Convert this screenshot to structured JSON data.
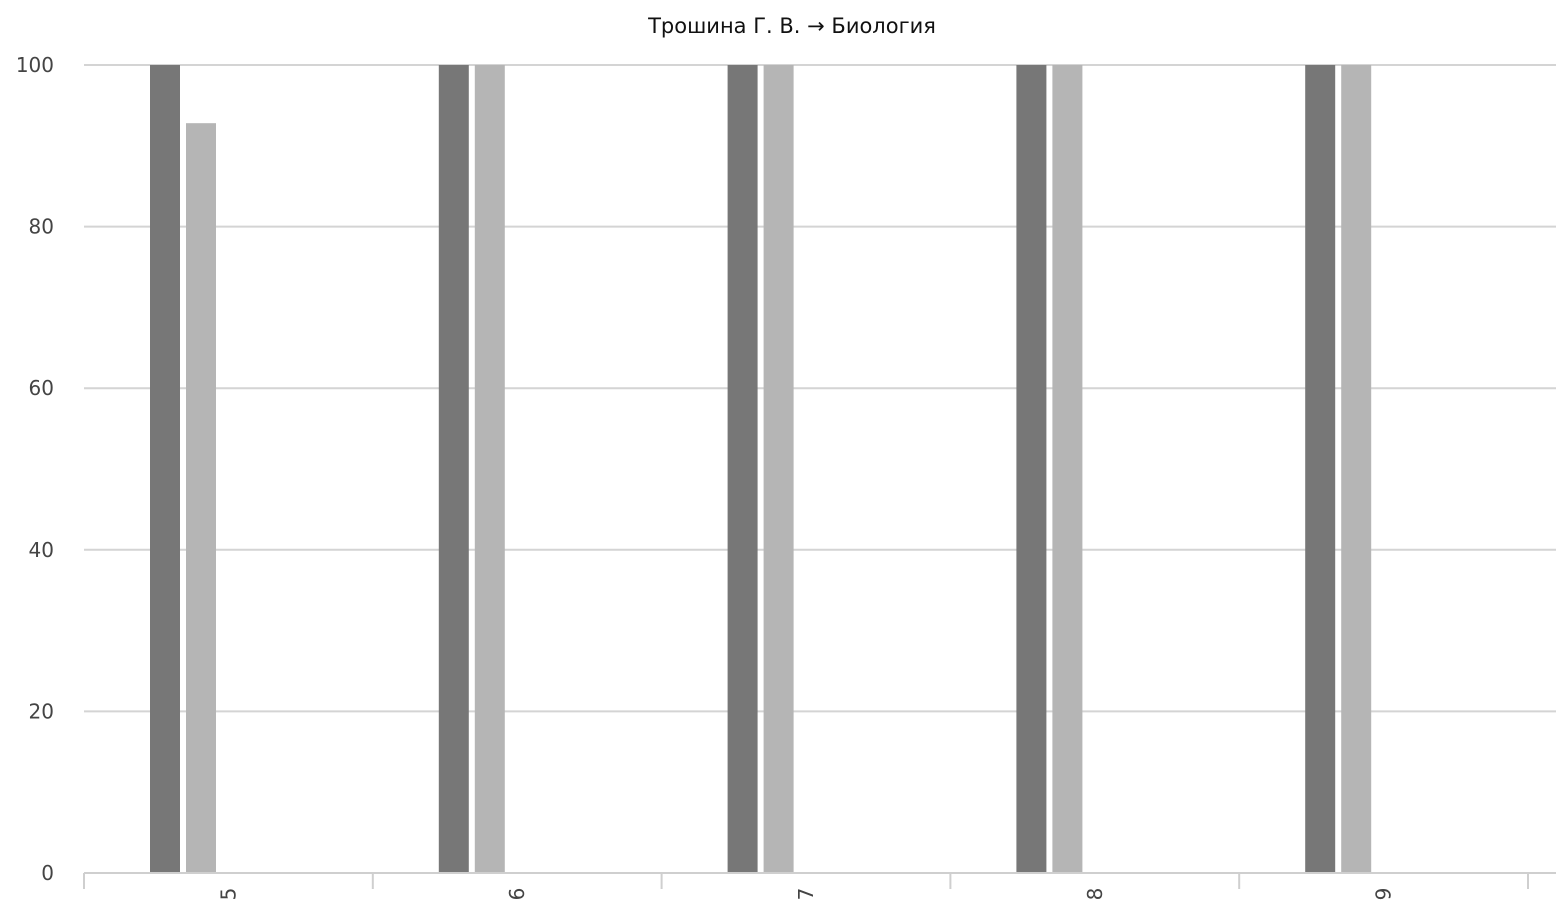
{
  "chart_data": {
    "type": "bar",
    "title": "Трошина Г. В. → Биология",
    "xlabel": "",
    "ylabel": "",
    "categories": [
      "5",
      "6",
      "7",
      "8",
      "9"
    ],
    "series": [
      {
        "color": "#777777",
        "values": [
          100,
          100,
          100,
          100,
          100
        ]
      },
      {
        "color": "#b5b5b5",
        "values": [
          92.8,
          100,
          100,
          100,
          100
        ]
      }
    ],
    "ylim": [
      0,
      100
    ],
    "yticks": [
      0,
      20,
      40,
      60,
      80,
      100
    ],
    "x_tick_rotation": "vertical",
    "grid": true,
    "legend": "none"
  }
}
